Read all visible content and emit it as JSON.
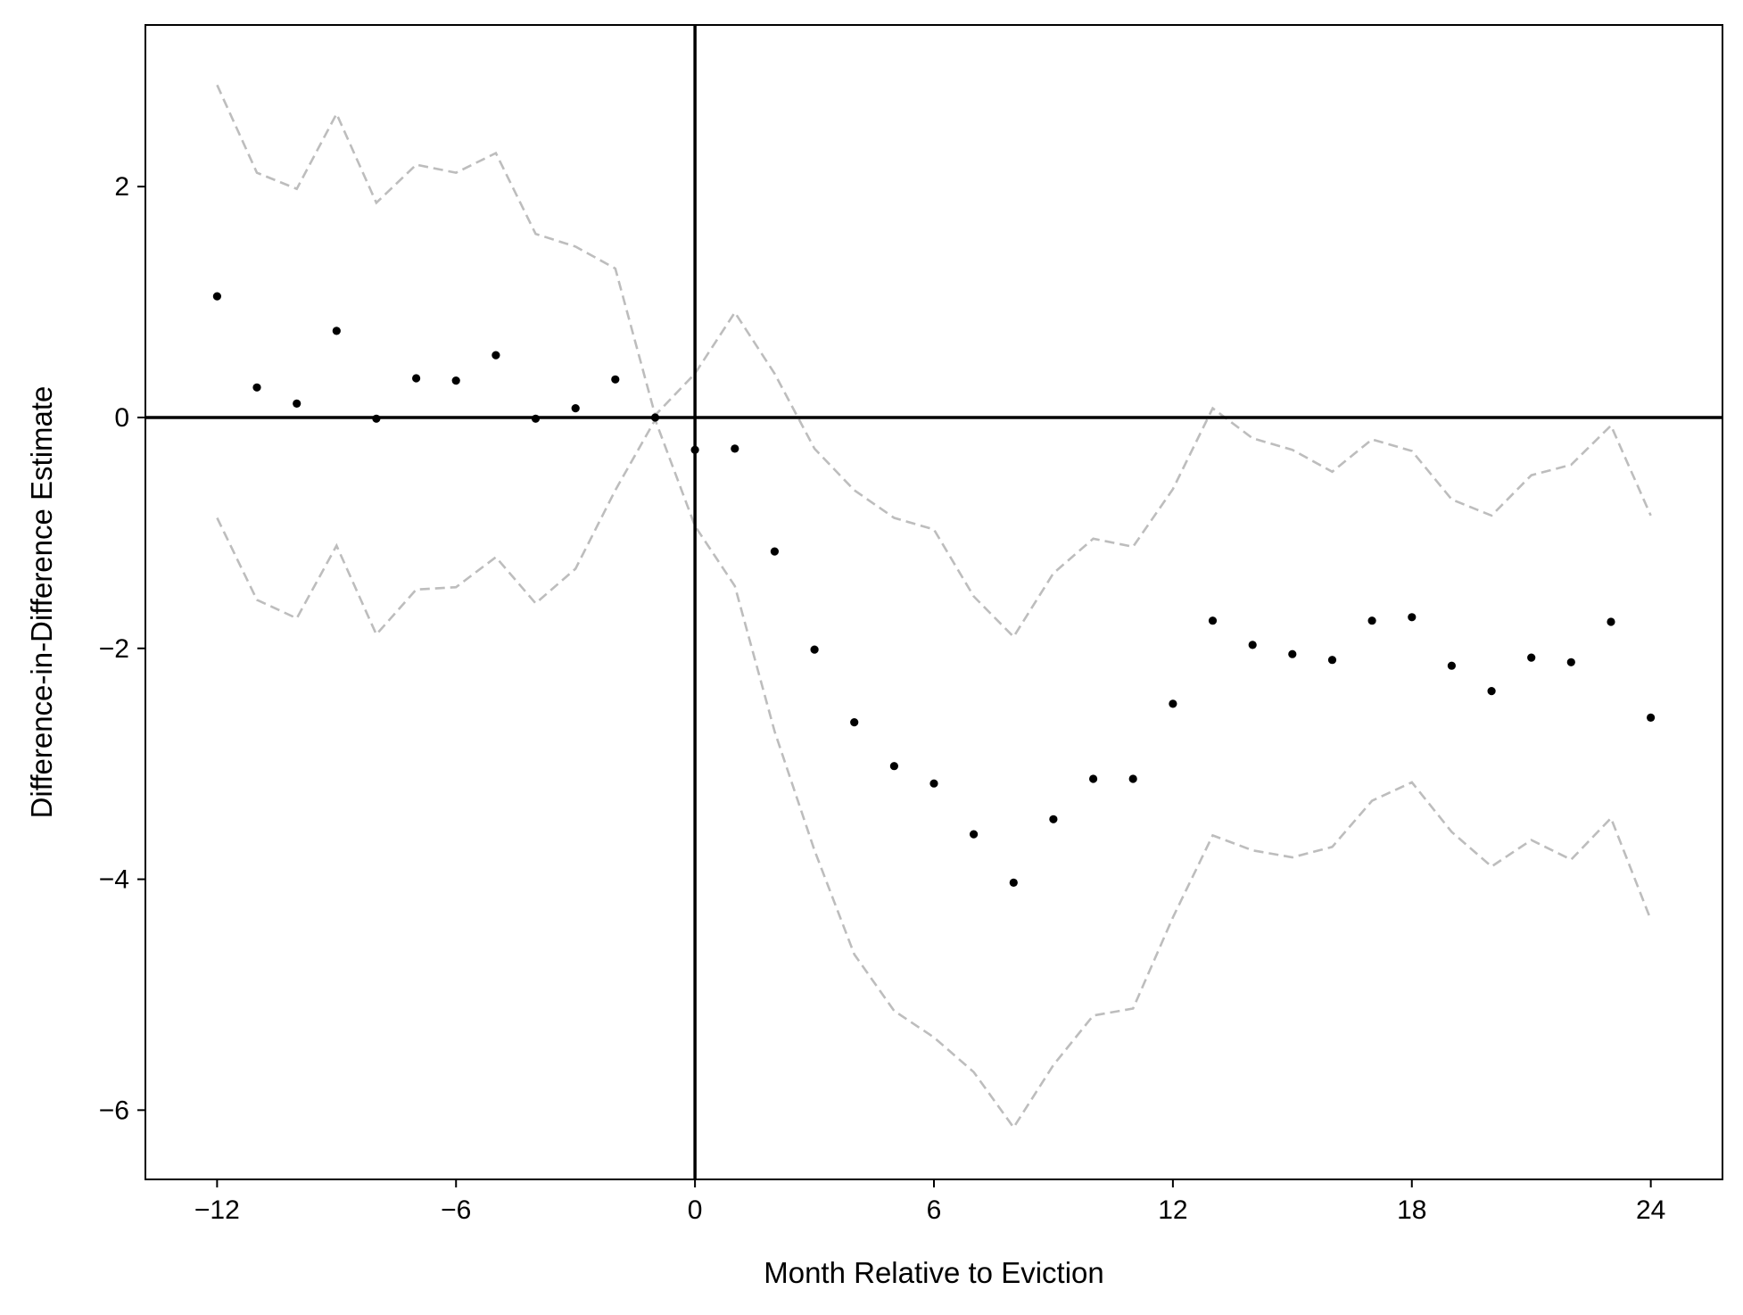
{
  "chart_data": {
    "type": "scatter",
    "title": "",
    "xlabel": "Month Relative to Eviction",
    "ylabel": "Difference-in-Difference Estimate",
    "xlim": [
      -13.8,
      25.8
    ],
    "ylim": [
      -6.6,
      3.4
    ],
    "xticks": [
      -12,
      -6,
      0,
      6,
      12,
      18,
      24
    ],
    "yticks": [
      -6,
      -4,
      -2,
      0,
      2
    ],
    "grid": false,
    "reference_lines": {
      "x": 0,
      "y": 0
    },
    "colors": {
      "points": "#000000",
      "ci": "#bdbdbd",
      "reference": "#000000"
    },
    "series": [
      {
        "role": "estimate",
        "x": [
          -12,
          -11,
          -10,
          -9,
          -8,
          -7,
          -6,
          -5,
          -4,
          -3,
          -2,
          -1,
          0,
          1,
          2,
          3,
          4,
          5,
          6,
          7,
          8,
          9,
          10,
          11,
          12,
          13,
          14,
          15,
          16,
          17,
          18,
          19,
          20,
          21,
          22,
          23,
          24
        ],
        "y": [
          1.05,
          0.26,
          0.12,
          0.75,
          -0.01,
          0.34,
          0.32,
          0.54,
          -0.01,
          0.08,
          0.33,
          0.0,
          -0.28,
          -0.27,
          -1.16,
          -2.01,
          -2.64,
          -3.02,
          -3.17,
          -3.61,
          -4.03,
          -3.48,
          -3.13,
          -3.13,
          -2.48,
          -1.76,
          -1.97,
          -2.05,
          -2.1,
          -1.76,
          -1.73,
          -2.15,
          -2.37,
          -2.08,
          -2.12,
          -1.77,
          -2.6
        ]
      },
      {
        "role": "ci_upper",
        "x": [
          -12,
          -11,
          -10,
          -9,
          -8,
          -7,
          -6,
          -5,
          -4,
          -3,
          -2,
          -1,
          0,
          1,
          2,
          3,
          4,
          5,
          6,
          7,
          8,
          9,
          10,
          11,
          12,
          13,
          14,
          15,
          16,
          17,
          18,
          19,
          20,
          21,
          22,
          23,
          24
        ],
        "y": [
          2.88,
          2.12,
          1.98,
          2.63,
          1.86,
          2.19,
          2.12,
          2.29,
          1.59,
          1.48,
          1.29,
          0.02,
          0.38,
          0.91,
          0.38,
          -0.27,
          -0.63,
          -0.87,
          -0.97,
          -1.55,
          -1.9,
          -1.35,
          -1.05,
          -1.12,
          -0.62,
          0.08,
          -0.18,
          -0.28,
          -0.47,
          -0.19,
          -0.29,
          -0.71,
          -0.85,
          -0.5,
          -0.41,
          -0.07,
          -0.85
        ]
      },
      {
        "role": "ci_lower",
        "x": [
          -12,
          -11,
          -10,
          -9,
          -8,
          -7,
          -6,
          -5,
          -4,
          -3,
          -2,
          -1,
          0,
          1,
          2,
          3,
          4,
          5,
          6,
          7,
          8,
          9,
          10,
          11,
          12,
          13,
          14,
          15,
          16,
          17,
          18,
          19,
          20,
          21,
          22,
          23,
          24
        ],
        "y": [
          -0.87,
          -1.58,
          -1.74,
          -1.11,
          -1.88,
          -1.49,
          -1.47,
          -1.21,
          -1.61,
          -1.31,
          -0.63,
          -0.02,
          -0.94,
          -1.46,
          -2.72,
          -3.75,
          -4.65,
          -5.14,
          -5.37,
          -5.67,
          -6.15,
          -5.61,
          -5.18,
          -5.12,
          -4.33,
          -3.62,
          -3.75,
          -3.81,
          -3.72,
          -3.32,
          -3.16,
          -3.59,
          -3.89,
          -3.66,
          -3.83,
          -3.47,
          -4.35
        ]
      }
    ]
  }
}
